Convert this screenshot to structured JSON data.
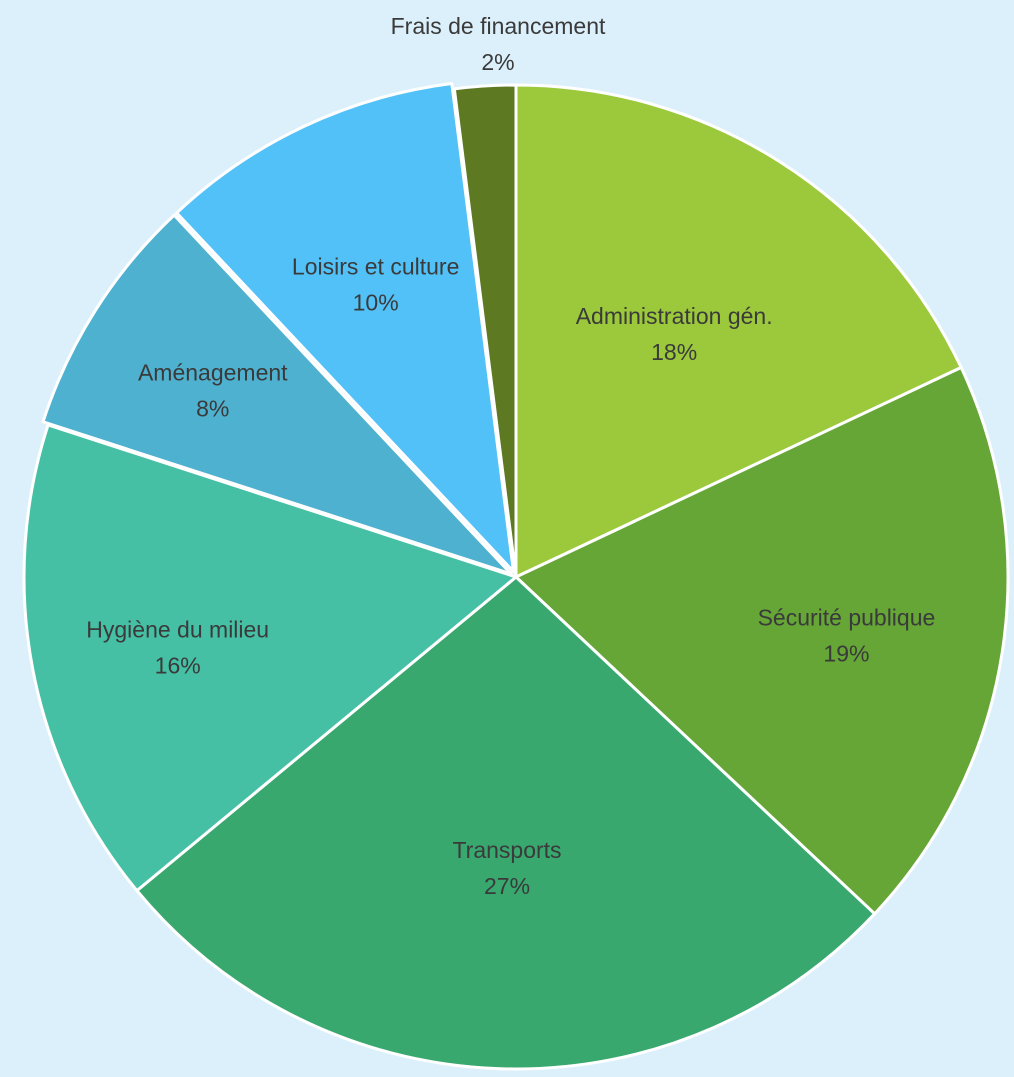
{
  "chart_data": {
    "type": "pie",
    "title": "",
    "slices": [
      {
        "label": "Administration gén.",
        "value": 18,
        "value_label": "18%",
        "color": "#9bc93b"
      },
      {
        "label": "Sécurité publique",
        "value": 19,
        "value_label": "19%",
        "color": "#65a637"
      },
      {
        "label": "Transports",
        "value": 27,
        "value_label": "27%",
        "color": "#38a86f"
      },
      {
        "label": "Hygiène du milieu",
        "value": 16,
        "value_label": "16%",
        "color": "#45c0a4"
      },
      {
        "label": "Aménagement",
        "value": 8,
        "value_label": "8%",
        "color": "#4eb1cf"
      },
      {
        "label": "Loisirs et culture",
        "value": 10,
        "value_label": "10%",
        "color": "#52c1f7"
      },
      {
        "label": "Frais de financement",
        "value": 2,
        "value_label": "2%",
        "color": "#5d7a23"
      }
    ],
    "background": "#dcf0fb",
    "slice_border_color": "#ffffff",
    "label_color": "#3a3a3a"
  }
}
